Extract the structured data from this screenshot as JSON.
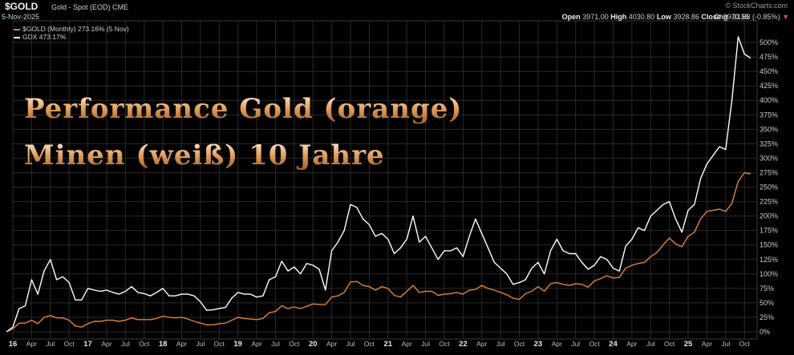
{
  "header": {
    "symbol": "$GOLD",
    "description": "Gold - Spot (EOD)",
    "exchange": "CME",
    "date": "5-Nov-2025",
    "brand": "© StockCharts.com",
    "open_label": "Open",
    "open": "3971.00",
    "high_label": "High",
    "high": "4030.80",
    "low_label": "Low",
    "low": "3928.86",
    "close_label": "Close",
    "close": "3970.55",
    "chg_label": "Chg",
    "chg": "-33.88 (-0.85%)"
  },
  "legend": {
    "gold": "$GOLD (Monthly) 273.16% (5 Nov)",
    "gdx": "GDX 473.17%"
  },
  "overlay": {
    "line1": "Performance Gold (orange)",
    "line2": "Minen (weiß) 10 Jahre"
  },
  "colors": {
    "background": "#000000",
    "grid": "#2a2a2a",
    "gold": "#e0833a",
    "gdx": "#ffffff",
    "text": "#cccccc"
  },
  "chart_data": {
    "type": "line",
    "title": "",
    "xlabel": "",
    "ylabel": "",
    "grid": true,
    "legend_position": "top-left",
    "y_unit": "%",
    "ylim": [
      0,
      525
    ],
    "y_ticks": [
      "0%",
      "25%",
      "50%",
      "75%",
      "100%",
      "125%",
      "150%",
      "175%",
      "200%",
      "225%",
      "250%",
      "275%",
      "300%",
      "325%",
      "350%",
      "375%",
      "400%",
      "425%",
      "450%",
      "475%",
      "500%"
    ],
    "x_start": "2016-01",
    "x_end": "2025-11",
    "x_ticks": [
      {
        "date": "2016-01",
        "label": "16",
        "year": true
      },
      {
        "date": "2016-04",
        "label": "Apr"
      },
      {
        "date": "2016-07",
        "label": "Jul"
      },
      {
        "date": "2016-10",
        "label": "Oct"
      },
      {
        "date": "2017-01",
        "label": "17",
        "year": true
      },
      {
        "date": "2017-04",
        "label": "Apr"
      },
      {
        "date": "2017-07",
        "label": "Jul"
      },
      {
        "date": "2017-10",
        "label": "Oct"
      },
      {
        "date": "2018-01",
        "label": "18",
        "year": true
      },
      {
        "date": "2018-04",
        "label": "Apr"
      },
      {
        "date": "2018-07",
        "label": "Jul"
      },
      {
        "date": "2018-10",
        "label": "Oct"
      },
      {
        "date": "2019-01",
        "label": "19",
        "year": true
      },
      {
        "date": "2019-04",
        "label": "Apr"
      },
      {
        "date": "2019-07",
        "label": "Jul"
      },
      {
        "date": "2019-10",
        "label": "Oct"
      },
      {
        "date": "2020-01",
        "label": "20",
        "year": true
      },
      {
        "date": "2020-04",
        "label": "Apr"
      },
      {
        "date": "2020-07",
        "label": "Jul"
      },
      {
        "date": "2020-10",
        "label": "Oct"
      },
      {
        "date": "2021-01",
        "label": "21",
        "year": true
      },
      {
        "date": "2021-04",
        "label": "Apr"
      },
      {
        "date": "2021-07",
        "label": "Jul"
      },
      {
        "date": "2021-10",
        "label": "Oct"
      },
      {
        "date": "2022-01",
        "label": "22",
        "year": true
      },
      {
        "date": "2022-04",
        "label": "Apr"
      },
      {
        "date": "2022-07",
        "label": "Jul"
      },
      {
        "date": "2022-10",
        "label": "Oct"
      },
      {
        "date": "2023-01",
        "label": "23",
        "year": true
      },
      {
        "date": "2023-04",
        "label": "Apr"
      },
      {
        "date": "2023-07",
        "label": "Jul"
      },
      {
        "date": "2023-10",
        "label": "Oct"
      },
      {
        "date": "2024-01",
        "label": "24",
        "year": true
      },
      {
        "date": "2024-04",
        "label": "Apr"
      },
      {
        "date": "2024-07",
        "label": "Jul"
      },
      {
        "date": "2024-10",
        "label": "Oct"
      },
      {
        "date": "2025-01",
        "label": "25",
        "year": true
      },
      {
        "date": "2025-04",
        "label": "Apr"
      },
      {
        "date": "2025-07",
        "label": "Jul"
      },
      {
        "date": "2025-10",
        "label": "Oct"
      }
    ],
    "series": [
      {
        "name": "$GOLD (Monthly)",
        "color": "#e0833a",
        "points": [
          [
            "2015-12",
            0
          ],
          [
            "2016-01",
            5
          ],
          [
            "2016-02",
            15
          ],
          [
            "2016-03",
            15
          ],
          [
            "2016-04",
            20
          ],
          [
            "2016-05",
            14
          ],
          [
            "2016-06",
            25
          ],
          [
            "2016-07",
            28
          ],
          [
            "2016-08",
            24
          ],
          [
            "2016-09",
            24
          ],
          [
            "2016-10",
            20
          ],
          [
            "2016-11",
            10
          ],
          [
            "2016-12",
            8
          ],
          [
            "2017-01",
            14
          ],
          [
            "2017-02",
            18
          ],
          [
            "2017-03",
            18
          ],
          [
            "2017-04",
            20
          ],
          [
            "2017-05",
            20
          ],
          [
            "2017-06",
            18
          ],
          [
            "2017-07",
            20
          ],
          [
            "2017-08",
            24
          ],
          [
            "2017-09",
            21
          ],
          [
            "2017-10",
            21
          ],
          [
            "2017-11",
            21
          ],
          [
            "2017-12",
            23
          ],
          [
            "2018-01",
            27
          ],
          [
            "2018-02",
            25
          ],
          [
            "2018-03",
            24
          ],
          [
            "2018-04",
            25
          ],
          [
            "2018-05",
            22
          ],
          [
            "2018-06",
            18
          ],
          [
            "2018-07",
            15
          ],
          [
            "2018-08",
            12
          ],
          [
            "2018-09",
            12
          ],
          [
            "2018-10",
            14
          ],
          [
            "2018-11",
            15
          ],
          [
            "2018-12",
            20
          ],
          [
            "2019-01",
            25
          ],
          [
            "2019-02",
            23
          ],
          [
            "2019-03",
            22
          ],
          [
            "2019-04",
            21
          ],
          [
            "2019-05",
            23
          ],
          [
            "2019-06",
            33
          ],
          [
            "2019-07",
            35
          ],
          [
            "2019-08",
            45
          ],
          [
            "2019-09",
            40
          ],
          [
            "2019-10",
            43
          ],
          [
            "2019-11",
            40
          ],
          [
            "2019-12",
            44
          ],
          [
            "2020-01",
            48
          ],
          [
            "2020-02",
            47
          ],
          [
            "2020-03",
            47
          ],
          [
            "2020-04",
            60
          ],
          [
            "2020-05",
            62
          ],
          [
            "2020-06",
            68
          ],
          [
            "2020-07",
            86
          ],
          [
            "2020-08",
            87
          ],
          [
            "2020-09",
            80
          ],
          [
            "2020-10",
            78
          ],
          [
            "2020-11",
            72
          ],
          [
            "2020-12",
            78
          ],
          [
            "2021-01",
            75
          ],
          [
            "2021-02",
            63
          ],
          [
            "2021-03",
            60
          ],
          [
            "2021-04",
            70
          ],
          [
            "2021-05",
            80
          ],
          [
            "2021-06",
            68
          ],
          [
            "2021-07",
            70
          ],
          [
            "2021-08",
            70
          ],
          [
            "2021-09",
            63
          ],
          [
            "2021-10",
            65
          ],
          [
            "2021-11",
            66
          ],
          [
            "2021-12",
            68
          ],
          [
            "2022-01",
            65
          ],
          [
            "2022-02",
            72
          ],
          [
            "2022-03",
            73
          ],
          [
            "2022-04",
            80
          ],
          [
            "2022-05",
            75
          ],
          [
            "2022-06",
            72
          ],
          [
            "2022-07",
            68
          ],
          [
            "2022-08",
            64
          ],
          [
            "2022-09",
            58
          ],
          [
            "2022-10",
            56
          ],
          [
            "2022-11",
            66
          ],
          [
            "2022-12",
            70
          ],
          [
            "2023-01",
            78
          ],
          [
            "2023-02",
            70
          ],
          [
            "2023-03",
            83
          ],
          [
            "2023-04",
            85
          ],
          [
            "2023-05",
            82
          ],
          [
            "2023-06",
            80
          ],
          [
            "2023-07",
            83
          ],
          [
            "2023-08",
            82
          ],
          [
            "2023-09",
            77
          ],
          [
            "2023-10",
            88
          ],
          [
            "2023-11",
            92
          ],
          [
            "2023-12",
            97
          ],
          [
            "2024-01",
            93
          ],
          [
            "2024-02",
            94
          ],
          [
            "2024-03",
            110
          ],
          [
            "2024-04",
            115
          ],
          [
            "2024-05",
            118
          ],
          [
            "2024-06",
            120
          ],
          [
            "2024-07",
            130
          ],
          [
            "2024-08",
            137
          ],
          [
            "2024-09",
            150
          ],
          [
            "2024-10",
            162
          ],
          [
            "2024-11",
            152
          ],
          [
            "2024-12",
            147
          ],
          [
            "2025-01",
            165
          ],
          [
            "2025-02",
            172
          ],
          [
            "2025-03",
            195
          ],
          [
            "2025-04",
            208
          ],
          [
            "2025-05",
            210
          ],
          [
            "2025-06",
            212
          ],
          [
            "2025-07",
            208
          ],
          [
            "2025-08",
            222
          ],
          [
            "2025-09",
            260
          ],
          [
            "2025-10",
            275
          ],
          [
            "2025-11",
            273
          ]
        ]
      },
      {
        "name": "GDX",
        "color": "#ffffff",
        "points": [
          [
            "2015-12",
            0
          ],
          [
            "2016-01",
            8
          ],
          [
            "2016-02",
            40
          ],
          [
            "2016-03",
            45
          ],
          [
            "2016-04",
            90
          ],
          [
            "2016-05",
            65
          ],
          [
            "2016-06",
            105
          ],
          [
            "2016-07",
            125
          ],
          [
            "2016-08",
            90
          ],
          [
            "2016-09",
            95
          ],
          [
            "2016-10",
            85
          ],
          [
            "2016-11",
            55
          ],
          [
            "2016-12",
            55
          ],
          [
            "2017-01",
            75
          ],
          [
            "2017-02",
            72
          ],
          [
            "2017-03",
            70
          ],
          [
            "2017-04",
            72
          ],
          [
            "2017-05",
            68
          ],
          [
            "2017-06",
            65
          ],
          [
            "2017-07",
            70
          ],
          [
            "2017-08",
            78
          ],
          [
            "2017-09",
            68
          ],
          [
            "2017-10",
            66
          ],
          [
            "2017-11",
            62
          ],
          [
            "2017-12",
            68
          ],
          [
            "2018-01",
            75
          ],
          [
            "2018-02",
            62
          ],
          [
            "2018-03",
            62
          ],
          [
            "2018-04",
            65
          ],
          [
            "2018-05",
            65
          ],
          [
            "2018-06",
            62
          ],
          [
            "2018-07",
            52
          ],
          [
            "2018-08",
            37
          ],
          [
            "2018-09",
            38
          ],
          [
            "2018-10",
            40
          ],
          [
            "2018-11",
            42
          ],
          [
            "2018-12",
            58
          ],
          [
            "2019-01",
            68
          ],
          [
            "2019-02",
            65
          ],
          [
            "2019-03",
            65
          ],
          [
            "2019-04",
            60
          ],
          [
            "2019-05",
            62
          ],
          [
            "2019-06",
            90
          ],
          [
            "2019-07",
            95
          ],
          [
            "2019-08",
            122
          ],
          [
            "2019-09",
            105
          ],
          [
            "2019-10",
            112
          ],
          [
            "2019-11",
            100
          ],
          [
            "2019-12",
            118
          ],
          [
            "2020-01",
            115
          ],
          [
            "2020-02",
            108
          ],
          [
            "2020-03",
            72
          ],
          [
            "2020-04",
            140
          ],
          [
            "2020-05",
            155
          ],
          [
            "2020-06",
            175
          ],
          [
            "2020-07",
            220
          ],
          [
            "2020-08",
            215
          ],
          [
            "2020-09",
            195
          ],
          [
            "2020-10",
            185
          ],
          [
            "2020-11",
            165
          ],
          [
            "2020-12",
            170
          ],
          [
            "2021-01",
            160
          ],
          [
            "2021-02",
            135
          ],
          [
            "2021-03",
            145
          ],
          [
            "2021-04",
            160
          ],
          [
            "2021-05",
            200
          ],
          [
            "2021-06",
            155
          ],
          [
            "2021-07",
            165
          ],
          [
            "2021-08",
            145
          ],
          [
            "2021-09",
            125
          ],
          [
            "2021-10",
            140
          ],
          [
            "2021-11",
            140
          ],
          [
            "2021-12",
            145
          ],
          [
            "2022-01",
            130
          ],
          [
            "2022-02",
            165
          ],
          [
            "2022-03",
            195
          ],
          [
            "2022-04",
            170
          ],
          [
            "2022-05",
            145
          ],
          [
            "2022-06",
            120
          ],
          [
            "2022-07",
            110
          ],
          [
            "2022-08",
            100
          ],
          [
            "2022-09",
            82
          ],
          [
            "2022-10",
            85
          ],
          [
            "2022-11",
            90
          ],
          [
            "2022-12",
            110
          ],
          [
            "2023-01",
            120
          ],
          [
            "2023-02",
            100
          ],
          [
            "2023-03",
            140
          ],
          [
            "2023-04",
            160
          ],
          [
            "2023-05",
            140
          ],
          [
            "2023-06",
            135
          ],
          [
            "2023-07",
            135
          ],
          [
            "2023-08",
            120
          ],
          [
            "2023-09",
            108
          ],
          [
            "2023-10",
            115
          ],
          [
            "2023-11",
            130
          ],
          [
            "2023-12",
            125
          ],
          [
            "2024-01",
            110
          ],
          [
            "2024-02",
            105
          ],
          [
            "2024-03",
            148
          ],
          [
            "2024-04",
            160
          ],
          [
            "2024-05",
            180
          ],
          [
            "2024-06",
            175
          ],
          [
            "2024-07",
            200
          ],
          [
            "2024-08",
            210
          ],
          [
            "2024-09",
            220
          ],
          [
            "2024-10",
            225
          ],
          [
            "2024-11",
            195
          ],
          [
            "2024-12",
            172
          ],
          [
            "2025-01",
            210
          ],
          [
            "2025-02",
            220
          ],
          [
            "2025-03",
            265
          ],
          [
            "2025-04",
            290
          ],
          [
            "2025-05",
            305
          ],
          [
            "2025-06",
            320
          ],
          [
            "2025-07",
            315
          ],
          [
            "2025-08",
            400
          ],
          [
            "2025-09",
            510
          ],
          [
            "2025-10",
            480
          ],
          [
            "2025-11",
            473
          ]
        ]
      }
    ]
  }
}
